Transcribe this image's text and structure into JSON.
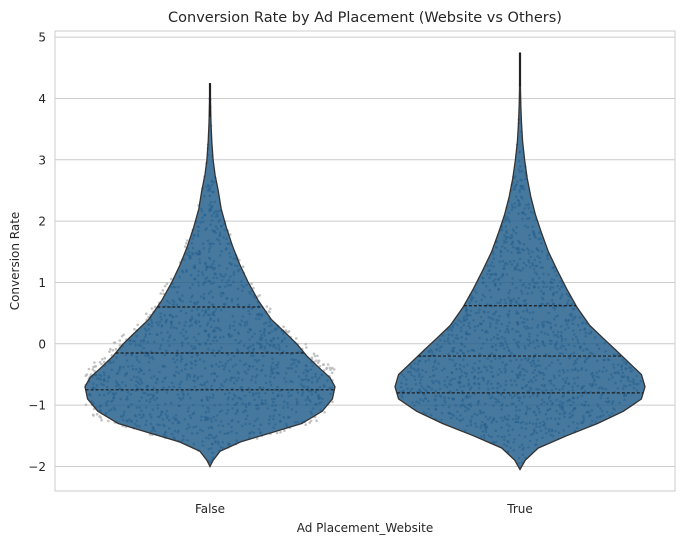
{
  "chart_data": {
    "type": "violin",
    "title": "Conversion Rate by Ad Placement (Website vs Others)",
    "xlabel": "Ad Placement_Website",
    "ylabel": "Conversion Rate",
    "categories": [
      "False",
      "True"
    ],
    "ylim": [
      -2.4,
      5.1
    ],
    "yticks": [
      -2,
      -1,
      0,
      1,
      2,
      3,
      4,
      5
    ],
    "ytick_labels": [
      "−2",
      "−1",
      "0",
      "1",
      "2",
      "3",
      "4",
      "5"
    ],
    "grid": true,
    "violins": [
      {
        "category": "False",
        "min": -2.0,
        "max": 4.25,
        "quartiles": [
          -0.75,
          -0.15,
          0.6
        ],
        "density": [
          [
            -2.0,
            0.0
          ],
          [
            -1.9,
            0.06
          ],
          [
            -1.75,
            0.2
          ],
          [
            -1.6,
            0.6
          ],
          [
            -1.45,
            1.2
          ],
          [
            -1.3,
            1.8
          ],
          [
            -1.1,
            2.2
          ],
          [
            -0.9,
            2.4
          ],
          [
            -0.7,
            2.45
          ],
          [
            -0.55,
            2.35
          ],
          [
            -0.4,
            2.15
          ],
          [
            -0.2,
            1.9
          ],
          [
            0.0,
            1.7
          ],
          [
            0.2,
            1.45
          ],
          [
            0.4,
            1.2
          ],
          [
            0.7,
            0.95
          ],
          [
            1.0,
            0.75
          ],
          [
            1.3,
            0.58
          ],
          [
            1.6,
            0.44
          ],
          [
            1.9,
            0.32
          ],
          [
            2.2,
            0.22
          ],
          [
            2.5,
            0.16
          ],
          [
            2.75,
            0.1
          ],
          [
            3.0,
            0.06
          ],
          [
            3.3,
            0.035
          ],
          [
            3.6,
            0.02
          ],
          [
            3.9,
            0.01
          ],
          [
            4.25,
            0.0
          ]
        ]
      },
      {
        "category": "True",
        "min": -2.05,
        "max": 4.75,
        "quartiles": [
          -0.8,
          -0.2,
          0.62
        ],
        "density": [
          [
            -2.05,
            0.0
          ],
          [
            -1.9,
            0.1
          ],
          [
            -1.7,
            0.35
          ],
          [
            -1.5,
            0.9
          ],
          [
            -1.3,
            1.5
          ],
          [
            -1.1,
            2.0
          ],
          [
            -0.9,
            2.35
          ],
          [
            -0.7,
            2.42
          ],
          [
            -0.5,
            2.35
          ],
          [
            -0.3,
            2.1
          ],
          [
            -0.1,
            1.85
          ],
          [
            0.1,
            1.6
          ],
          [
            0.3,
            1.35
          ],
          [
            0.6,
            1.1
          ],
          [
            0.9,
            0.9
          ],
          [
            1.2,
            0.72
          ],
          [
            1.5,
            0.55
          ],
          [
            1.8,
            0.42
          ],
          [
            2.1,
            0.3
          ],
          [
            2.4,
            0.21
          ],
          [
            2.7,
            0.14
          ],
          [
            3.0,
            0.09
          ],
          [
            3.3,
            0.05
          ],
          [
            3.6,
            0.03
          ],
          [
            3.9,
            0.015
          ],
          [
            4.3,
            0.006
          ],
          [
            4.75,
            0.0
          ]
        ]
      }
    ],
    "colors": {
      "violin_fill": "#1f5b8a",
      "violin_outline": "#333333",
      "quartile_line": "#1a1a1a",
      "swarm_outside": "#b8b8b8",
      "swarm_inside": "#3e6f99",
      "grid": "#cccccc",
      "frame": "#cccccc"
    }
  }
}
